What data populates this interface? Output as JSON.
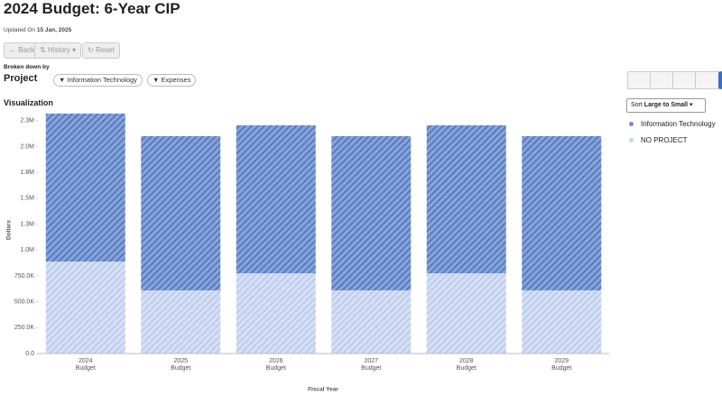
{
  "header": {
    "title": "2024 Budget: 6-Year CIP",
    "updated_label": "Updated On",
    "updated_date": "15 Jan, 2025"
  },
  "buttons": [
    "Back",
    "History",
    "Reset"
  ],
  "breakdown": {
    "label": "Broken down by",
    "value": "Project",
    "filters": [
      "Information Technology",
      "Expenses"
    ]
  },
  "section": "Visualization",
  "sort": {
    "label": "Sort",
    "value": "Large to Small"
  },
  "chart_data": {
    "type": "stacked-bar",
    "y_label": "Dollars",
    "x_label": "Fiscal Year",
    "categories": [
      "2024",
      "2025",
      "2026",
      "2027",
      "2028",
      "2029"
    ],
    "category_sublabels": [
      "Budget",
      "Budget",
      "Budget",
      "Budget",
      "Budget",
      "Budget"
    ],
    "series": [
      {
        "name": "NO PROJECT",
        "color": "#c9d6f1",
        "values": [
          888000,
          610000,
          775000,
          610000,
          775000,
          610000
        ]
      },
      {
        "name": "Information Technology",
        "color": "#6d8fcf",
        "values": [
          1430000,
          1490000,
          1430000,
          1490000,
          1430000,
          1490000
        ]
      }
    ],
    "legend_order": [
      1,
      0
    ],
    "ylim": [
      0,
      2400000
    ],
    "yticks": [
      {
        "value": 0,
        "label": "0.0"
      },
      {
        "value": 250000,
        "label": "250.0K"
      },
      {
        "value": 500000,
        "label": "500.0K"
      },
      {
        "value": 750000,
        "label": "750.0K"
      },
      {
        "value": 1000000,
        "label": "1.0M"
      },
      {
        "value": 1250000,
        "label": "1.3M"
      },
      {
        "value": 1500000,
        "label": "1.5M"
      },
      {
        "value": 1750000,
        "label": "1.8M"
      },
      {
        "value": 2000000,
        "label": "2.0M"
      },
      {
        "value": 2250000,
        "label": "2.3M"
      }
    ],
    "grid": false
  }
}
